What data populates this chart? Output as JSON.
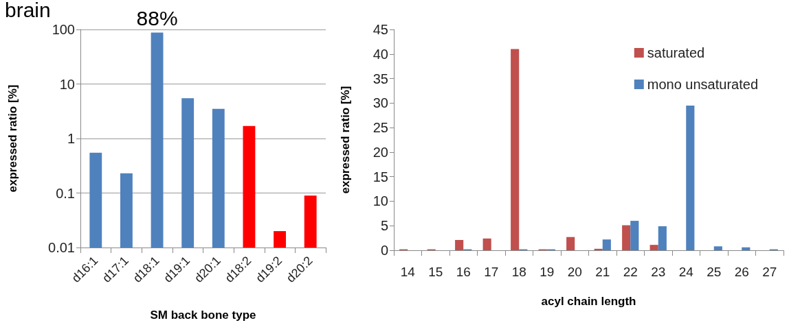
{
  "chart_data": [
    {
      "type": "bar",
      "title": "brain",
      "xlabel": "SM back bone type",
      "ylabel": "expressed ratio [%]",
      "log": "y",
      "grid": "y",
      "categories": [
        "d16:1",
        "d17:1",
        "d18:1",
        "d19:1",
        "d20:1",
        "d18:2",
        "d19:2",
        "d20:2"
      ],
      "values": [
        0.55,
        0.23,
        88,
        5.5,
        3.5,
        1.7,
        0.02,
        0.09
      ],
      "colors": [
        "#4f81bd",
        "#4f81bd",
        "#4f81bd",
        "#4f81bd",
        "#4f81bd",
        "#ff0000",
        "#ff0000",
        "#ff0000"
      ],
      "ylim": [
        0.01,
        100
      ],
      "yticks": [
        0.01,
        0.1,
        1,
        10,
        100
      ],
      "annotations": [
        {
          "text": "88%",
          "x": "d18:1",
          "y": 88
        }
      ]
    },
    {
      "type": "bar",
      "xlabel": "acyl chain length",
      "ylabel": "expressed ratio [%]",
      "grid": false,
      "legend": "top right",
      "categories": [
        "14",
        "15",
        "16",
        "17",
        "18",
        "19",
        "20",
        "21",
        "22",
        "23",
        "24",
        "25",
        "26",
        "27"
      ],
      "series": [
        {
          "name": "saturated",
          "color": "#c0504d",
          "values": [
            0.2,
            0.2,
            2.1,
            2.4,
            41,
            0.2,
            2.7,
            0.3,
            5.1,
            1.1,
            0,
            0,
            0,
            0
          ]
        },
        {
          "name": "mono unsaturated",
          "color": "#4f81bd",
          "values": [
            0,
            0,
            0.2,
            0,
            0.2,
            0.2,
            0,
            2.2,
            6,
            4.9,
            29.5,
            0.8,
            0.6,
            0.2
          ]
        }
      ],
      "ylim": [
        0,
        45
      ],
      "yticks": [
        0,
        5,
        10,
        15,
        20,
        25,
        30,
        35,
        40,
        45
      ]
    }
  ]
}
